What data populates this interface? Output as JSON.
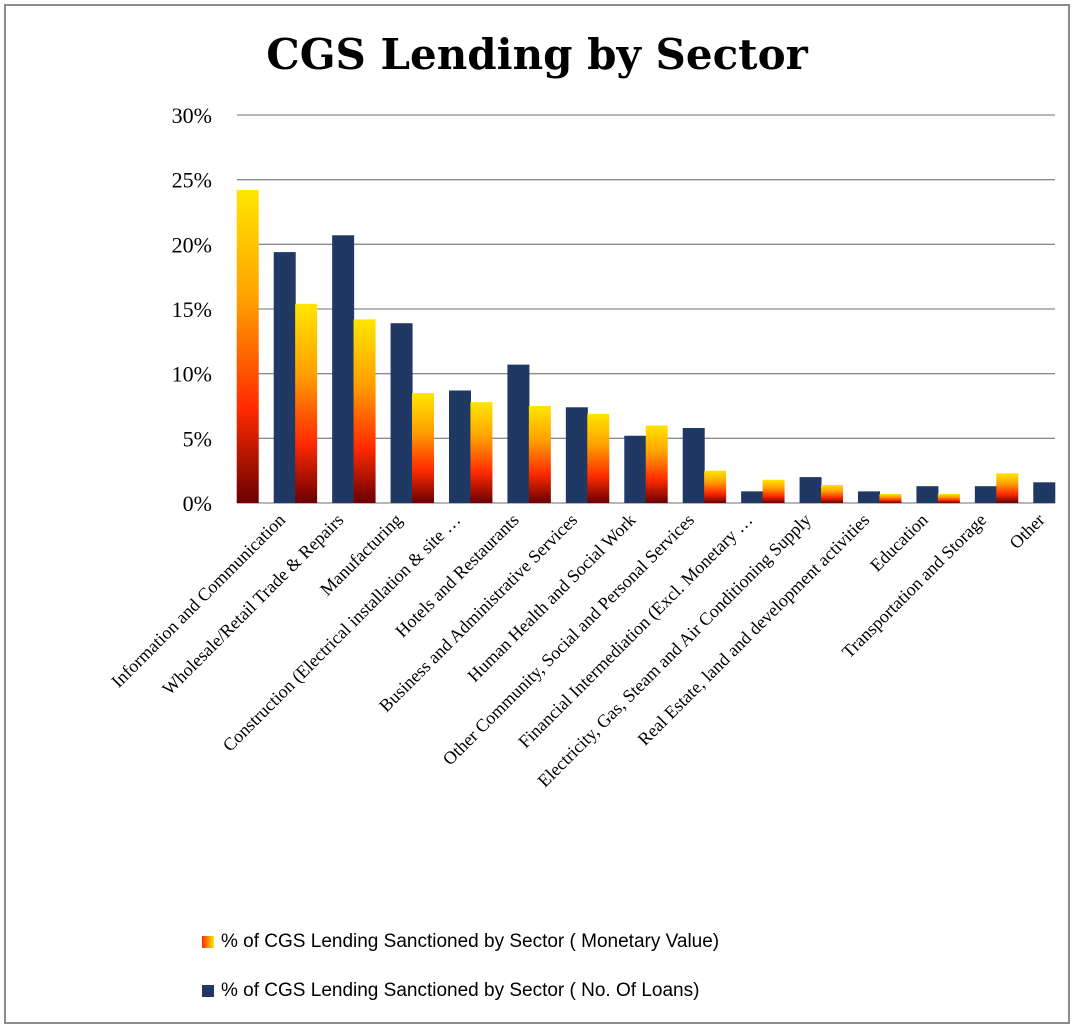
{
  "chart_data": {
    "type": "bar",
    "title": "CGS Lending by Sector",
    "categories": [
      "Information and Communication",
      "Wholesale/Retail Trade & Repairs",
      "Manufacturing",
      "Construction (Electrical installation & site …",
      "Hotels and Restaurants",
      "Business and Administrative Services",
      "Human Health and Social Work",
      "Other Community, Social and Personal Services",
      "Financial Intermediation (Excl. Monetary …",
      "Electricity, Gas, Steam and Air Conditioning Supply",
      "Real Estate, land and development activities",
      "Education",
      "Transportation and Storage",
      "Other"
    ],
    "series": [
      {
        "name": "% of CGS Lending Sanctioned by Sector ( Monetary Value)",
        "values": [
          24.2,
          15.4,
          14.2,
          8.5,
          7.8,
          7.5,
          6.9,
          6.0,
          2.5,
          1.8,
          1.4,
          0.7,
          0.7,
          2.3
        ]
      },
      {
        "name": "% of CGS Lending Sanctioned by Sector ( No. Of Loans)",
        "values": [
          19.4,
          20.7,
          13.9,
          8.7,
          10.7,
          7.4,
          5.2,
          5.8,
          0.9,
          2.0,
          0.9,
          1.3,
          1.3,
          1.6
        ]
      }
    ],
    "yticks": [
      "0%",
      "5%",
      "10%",
      "15%",
      "20%",
      "25%",
      "30%"
    ],
    "ylim": [
      0,
      30
    ],
    "grid": true,
    "legend_position": "bottom",
    "colors": {
      "series1_gradient": [
        "#ffe600",
        "#ffa000",
        "#ff2a00",
        "#6a0000"
      ],
      "series2": "#1f3864",
      "grid": "#8c8c8c"
    }
  }
}
